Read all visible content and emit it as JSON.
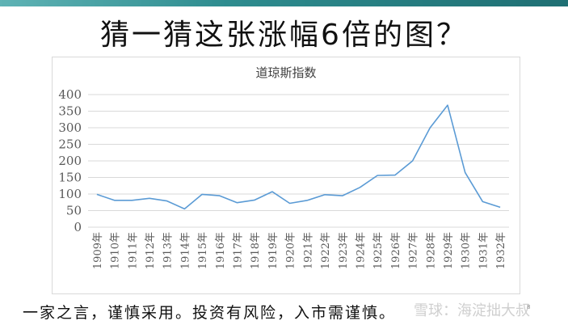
{
  "slide": {
    "title": "猜一猜这张涨幅6倍的图？",
    "footer": "一家之言，谨慎采用。投资有风险，入市需谨慎。",
    "watermark": "雪球：海淀拙大叔",
    "page_number": "8"
  },
  "colors": {
    "line": "#5b9bd5",
    "grid": "#d9d9d9",
    "tick_text": "#595959",
    "header_bar": "#2e8c8f"
  },
  "chart_data": {
    "type": "line",
    "title": "道琼斯指数",
    "xlabel": "",
    "ylabel": "",
    "ylim": [
      0,
      400
    ],
    "yticks": [
      "0",
      "50",
      "100",
      "150",
      "200",
      "250",
      "300",
      "350",
      "400"
    ],
    "grid": true,
    "categories": [
      "1909年",
      "1910年",
      "1911年",
      "1912年",
      "1913年",
      "1914年",
      "1915年",
      "1916年",
      "1917年",
      "1918年",
      "1919年",
      "1920年",
      "1921年",
      "1922年",
      "1923年",
      "1924年",
      "1925年",
      "1926年",
      "1927年",
      "1928年",
      "1929年",
      "1930年",
      "1931年",
      "1932年"
    ],
    "series": [
      {
        "values": [
          99,
          81,
          81,
          87,
          79,
          55,
          99,
          95,
          74,
          82,
          107,
          72,
          81,
          98,
          95,
          120,
          156,
          157,
          200,
          300,
          368,
          165,
          77,
          60
        ]
      }
    ]
  }
}
